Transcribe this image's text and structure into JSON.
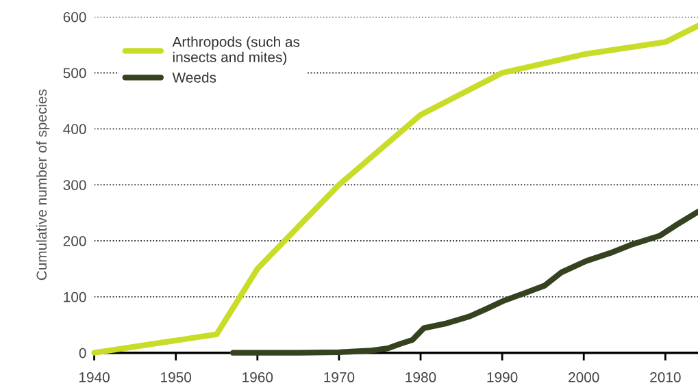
{
  "chart_data": {
    "type": "line",
    "ylabel": "Cumulative number of species",
    "xlim": [
      1940,
      2014
    ],
    "xticks": [
      1940,
      1950,
      1960,
      1970,
      1980,
      1990,
      2000,
      2010
    ],
    "ylim": [
      0,
      600
    ],
    "yticks": [
      0,
      100,
      200,
      300,
      400,
      500,
      600
    ],
    "grid": "y",
    "legend": "top left",
    "line_style": "solid",
    "marker": "none",
    "series": [
      {
        "name": "Arthropods (such as\ninsects and mites)",
        "color": "#c8dc28",
        "x": [
          1940,
          1955,
          1960,
          1970,
          1980,
          1990,
          2000,
          2010,
          2014
        ],
        "values": [
          0,
          33,
          150,
          300,
          425,
          500,
          533,
          555,
          584
        ]
      },
      {
        "name": "Weeds",
        "color": "#344220",
        "x": [
          1957,
          1965,
          1970,
          1974,
          1976,
          1977.5,
          1979,
          1980.4,
          1983,
          1986,
          1988,
          1990.2,
          1993,
          1995.2,
          1997.3,
          2000.3,
          2003.2,
          2006,
          2009.3,
          2011.2,
          2014
        ],
        "values": [
          0,
          0,
          1,
          4,
          8,
          16,
          23,
          44,
          52,
          65,
          78,
          93,
          108,
          120,
          144,
          164,
          178,
          194,
          209,
          227,
          252
        ]
      }
    ]
  }
}
